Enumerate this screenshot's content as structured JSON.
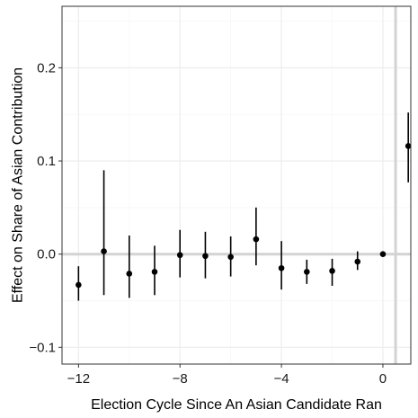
{
  "chart_data": {
    "type": "scatter",
    "subtype": "point-range",
    "title": "",
    "xlabel": "Election Cycle  Since An Asian Candidate Ran",
    "ylabel": "Effect on Share of Asian Contribution",
    "xlim": [
      -12.65,
      1.1
    ],
    "ylim": [
      -0.118,
      0.266
    ],
    "x_ticks": [
      -12,
      -8,
      -4,
      0
    ],
    "x_tick_labels": [
      "−12",
      "−8",
      "−4",
      "0"
    ],
    "y_ticks": [
      -0.1,
      0.0,
      0.1,
      0.2
    ],
    "y_tick_labels": [
      "−0.1",
      "0.0",
      "0.1",
      "0.2"
    ],
    "grid": true,
    "reference_lines": {
      "horizontal_y": 0.0,
      "vertical_x": 0.5
    },
    "points": [
      {
        "x": -12,
        "y": -0.033,
        "lo": -0.05,
        "hi": -0.013
      },
      {
        "x": -11,
        "y": 0.003,
        "lo": -0.044,
        "hi": 0.09
      },
      {
        "x": -10,
        "y": -0.021,
        "lo": -0.047,
        "hi": 0.02
      },
      {
        "x": -9,
        "y": -0.019,
        "lo": -0.044,
        "hi": 0.009
      },
      {
        "x": -8,
        "y": -0.001,
        "lo": -0.025,
        "hi": 0.026
      },
      {
        "x": -7,
        "y": -0.002,
        "lo": -0.026,
        "hi": 0.024
      },
      {
        "x": -6,
        "y": -0.003,
        "lo": -0.024,
        "hi": 0.019
      },
      {
        "x": -5,
        "y": 0.016,
        "lo": -0.012,
        "hi": 0.05
      },
      {
        "x": -4,
        "y": -0.015,
        "lo": -0.038,
        "hi": 0.014
      },
      {
        "x": -3,
        "y": -0.019,
        "lo": -0.032,
        "hi": -0.006
      },
      {
        "x": -2,
        "y": -0.018,
        "lo": -0.034,
        "hi": -0.005
      },
      {
        "x": -1,
        "y": -0.008,
        "lo": -0.017,
        "hi": 0.003
      },
      {
        "x": 0,
        "y": 0.0,
        "lo": 0.0,
        "hi": 0.0
      },
      {
        "x": 1,
        "y": 0.116,
        "lo": 0.077,
        "hi": 0.152
      }
    ],
    "colors": {
      "point": "#000000",
      "panel_border": "#333333",
      "grid_major": "#ebebeb",
      "grid_minor": "#f5f5f5",
      "reference_line": "#d3d3d3"
    }
  }
}
